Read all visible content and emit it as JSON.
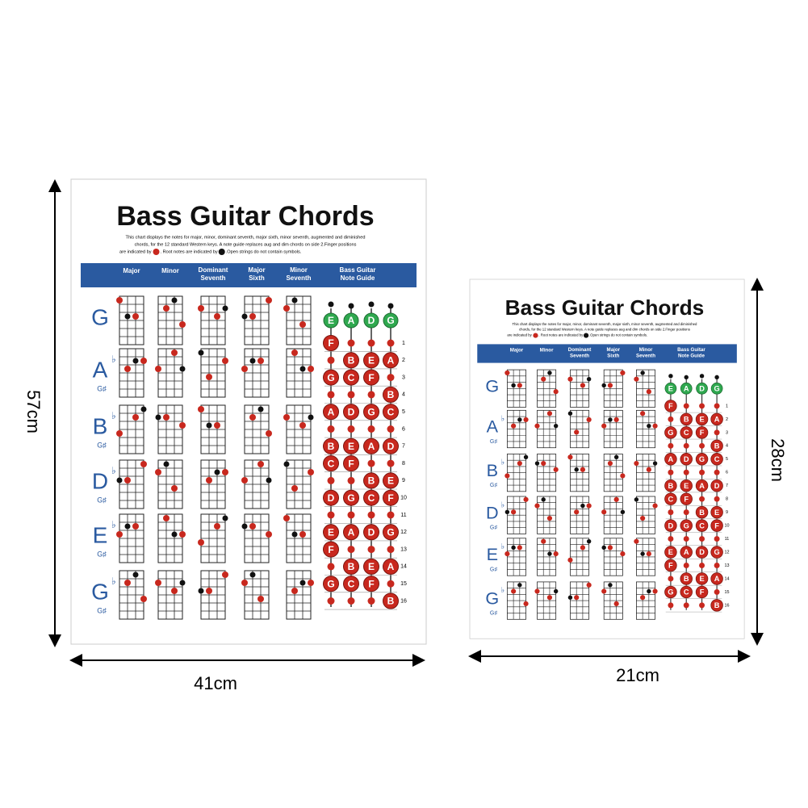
{
  "title": "Bass Guitar Chords",
  "description": [
    "This chart displays the notes for major, minor, dominant seventh, major sixth, minor seventh, augmented and diminished",
    "chords, for the 12 standard Western keys. A note guide replaces aug and dim chords on side 2.Finger positions",
    "are indicated by",
    ". Root notes are indicated by",
    ".Open strings do not contain symbols."
  ],
  "columns": [
    [
      "Major"
    ],
    [
      "Minor"
    ],
    [
      "Dominant",
      "Seventh"
    ],
    [
      "Major",
      "Sixth"
    ],
    [
      "Minor",
      "Seventh"
    ],
    [
      "Bass  Guitar",
      "Note Guide"
    ]
  ],
  "keys": [
    {
      "note": "G"
    },
    {
      "note": "A",
      "flat": "♭",
      "alt": "G♯"
    },
    {
      "note": "B",
      "flat": "♭",
      "alt": "G♯"
    },
    {
      "note": "D",
      "flat": "♭",
      "alt": "G♯"
    },
    {
      "note": "E",
      "flat": "♭",
      "alt": "G♯"
    },
    {
      "note": "G",
      "flat": "♭",
      "alt": "G♯"
    }
  ],
  "strings": [
    "E",
    "A",
    "D",
    "G"
  ],
  "frets": [
    1,
    2,
    3,
    4,
    5,
    6,
    7,
    8,
    9,
    10,
    11,
    12,
    13,
    14,
    15,
    16
  ],
  "fret_notes": [
    [
      "F",
      null,
      null,
      null
    ],
    [
      null,
      "B",
      "E",
      "A"
    ],
    [
      "G",
      "C",
      "F",
      null
    ],
    [
      null,
      null,
      null,
      "B"
    ],
    [
      "A",
      "D",
      "G",
      "C"
    ],
    [
      null,
      null,
      null,
      null
    ],
    [
      "B",
      "E",
      "A",
      "D"
    ],
    [
      "C",
      "F",
      null,
      null
    ],
    [
      null,
      null,
      "B",
      "E"
    ],
    [
      "D",
      "G",
      "C",
      "F"
    ],
    [
      null,
      null,
      null,
      null
    ],
    [
      "E",
      "A",
      "D",
      "G"
    ],
    [
      "F",
      null,
      null,
      null
    ],
    [
      null,
      "B",
      "E",
      "A"
    ],
    [
      "G",
      "C",
      "F",
      null
    ],
    [
      null,
      null,
      null,
      "B"
    ]
  ],
  "dimensions": {
    "large_height": "57cm",
    "large_width": "41cm",
    "small_height": "28cm",
    "small_width": "21cm"
  }
}
